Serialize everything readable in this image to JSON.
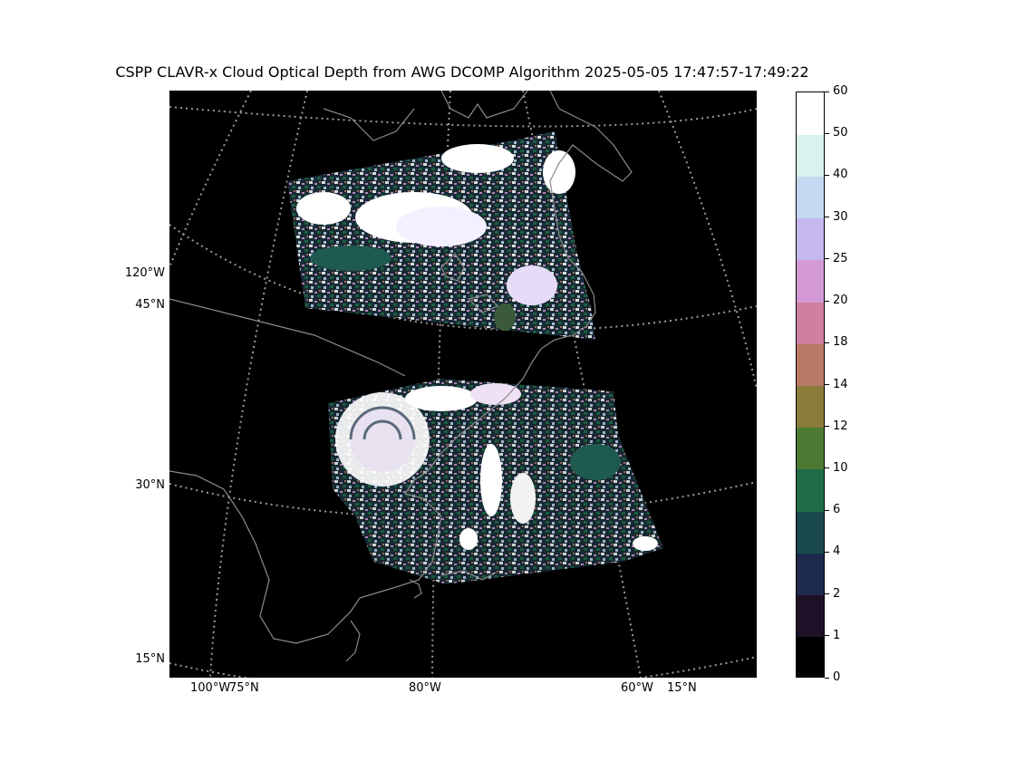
{
  "title": "CSPP CLAVR-x Cloud Optical Depth from AWG DCOMP Algorithm 2025-05-05 17:47:57-17:49:22",
  "map_labels": {
    "lat_120w": "120°W",
    "lat_45n": "45°N",
    "lat_30n": "30°N",
    "lat_15n": "15°N",
    "lon_100w": "100°W",
    "lon_75n": "75°N",
    "lon_80w": "80°W",
    "lon_60w": "60°W",
    "lon_15n": "15°N"
  },
  "colorbar": {
    "ticks": [
      "0",
      "1",
      "2",
      "4",
      "6",
      "10",
      "12",
      "14",
      "18",
      "20",
      "25",
      "30",
      "40",
      "50",
      "60"
    ],
    "colors": [
      "#000000",
      "#1d1128",
      "#1d2a4e",
      "#1a4a4e",
      "#1f6b48",
      "#4c7a33",
      "#8a7c3a",
      "#b87a64",
      "#d07fa0",
      "#d49ad6",
      "#c4b8ee",
      "#c4d8f2",
      "#d8f2ee",
      "#ffffff"
    ]
  },
  "colors": {
    "background": "#000000",
    "coastline": "#8a8a8a",
    "graticule": "#9a9a9a"
  }
}
